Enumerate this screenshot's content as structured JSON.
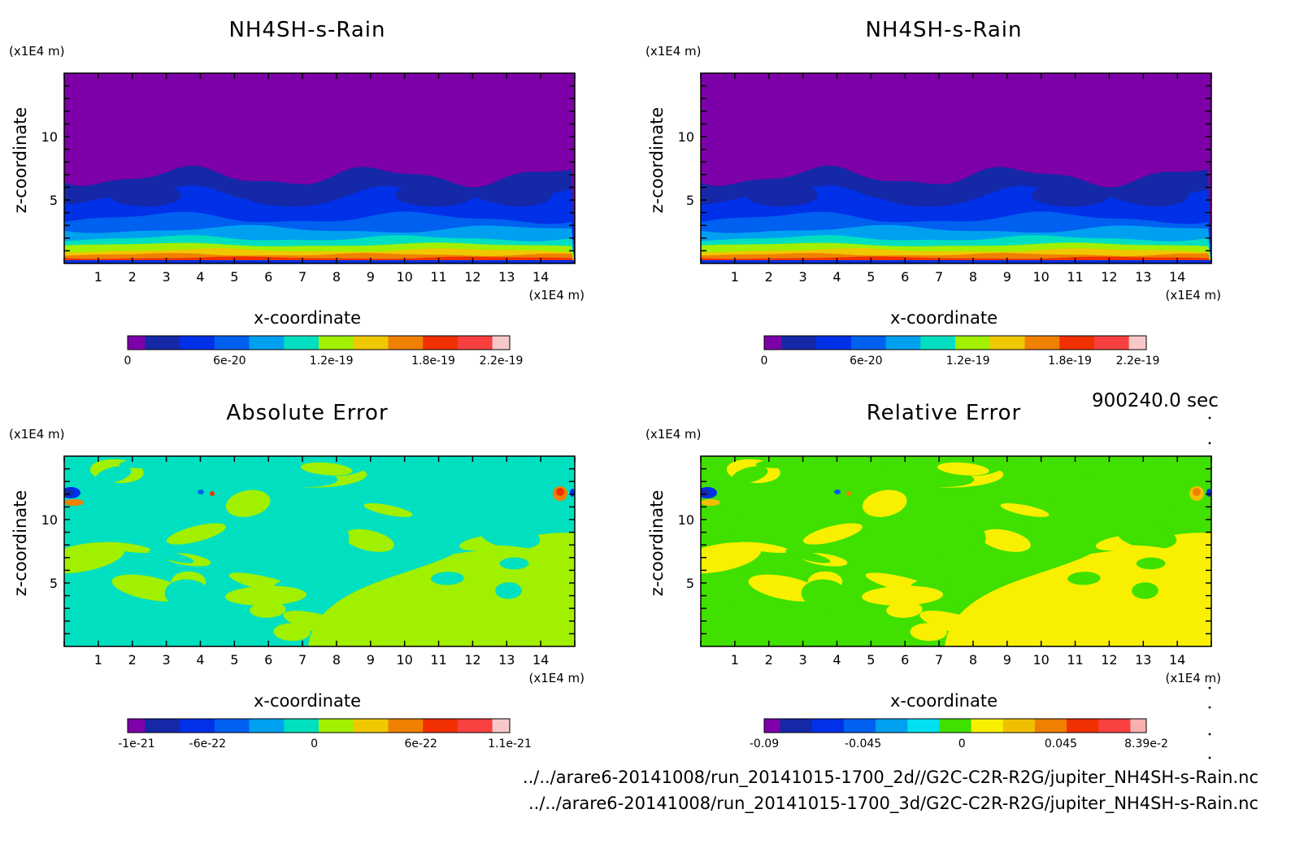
{
  "time_label": "900240.0 sec",
  "file_paths": [
    "../../arare6-20141008/run_20141015-1700_2d//G2C-C2R-R2G/jupiter_NH4SH-s-Rain.nc",
    "../../arare6-20141008/run_20141015-1700_3d/G2C-C2R-R2G/jupiter_NH4SH-s-Rain.nc"
  ],
  "chart_data": [
    {
      "type": "heatmap",
      "title": "NH4SH-s-Rain",
      "xlabel": "x-coordinate",
      "ylabel": "z-coordinate",
      "x_unit": "(x1E4 m)",
      "y_unit": "(x1E4 m)",
      "xlim": [
        0,
        15
      ],
      "ylim": [
        0,
        15
      ],
      "x_ticks": [
        1,
        2,
        3,
        4,
        5,
        6,
        7,
        8,
        9,
        10,
        11,
        12,
        13,
        14
      ],
      "y_ticks": [
        5,
        10
      ],
      "colorbar": {
        "range": [
          0,
          2.25e-19
        ],
        "tick_labels": [
          "0",
          "6e-20",
          "1.2e-19",
          "1.8e-19",
          "2.2e-19"
        ],
        "tick_values": [
          0,
          6e-20,
          1.2e-19,
          1.8e-19,
          2.2e-19
        ],
        "colors": [
          "#7e00a8",
          "#1428a8",
          "#0030e8",
          "#0060f0",
          "#00a0f0",
          "#00e0c0",
          "#a0f000",
          "#f0c800",
          "#f08000",
          "#f03000",
          "#f84040",
          "#f8c8c8"
        ]
      },
      "field": "layered"
    },
    {
      "type": "heatmap",
      "title": "NH4SH-s-Rain",
      "xlabel": "x-coordinate",
      "ylabel": "z-coordinate",
      "x_unit": "(x1E4 m)",
      "y_unit": "(x1E4 m)",
      "xlim": [
        0,
        15
      ],
      "ylim": [
        0,
        15
      ],
      "x_ticks": [
        1,
        2,
        3,
        4,
        5,
        6,
        7,
        8,
        9,
        10,
        11,
        12,
        13,
        14
      ],
      "y_ticks": [
        5,
        10
      ],
      "colorbar": {
        "range": [
          0,
          2.25e-19
        ],
        "tick_labels": [
          "0",
          "6e-20",
          "1.2e-19",
          "1.8e-19",
          "2.2e-19"
        ],
        "tick_values": [
          0,
          6e-20,
          1.2e-19,
          1.8e-19,
          2.2e-19
        ],
        "colors": [
          "#7e00a8",
          "#1428a8",
          "#0030e8",
          "#0060f0",
          "#00a0f0",
          "#00e0c0",
          "#a0f000",
          "#f0c800",
          "#f08000",
          "#f03000",
          "#f84040",
          "#f8c8c8"
        ]
      },
      "field": "layered"
    },
    {
      "type": "heatmap",
      "title": "Absolute Error",
      "xlabel": "x-coordinate",
      "ylabel": "z-coordinate",
      "x_unit": "(x1E4 m)",
      "y_unit": "(x1E4 m)",
      "xlim": [
        0,
        15
      ],
      "ylim": [
        0,
        15
      ],
      "x_ticks": [
        1,
        2,
        3,
        4,
        5,
        6,
        7,
        8,
        9,
        10,
        11,
        12,
        13,
        14
      ],
      "y_ticks": [
        5,
        10
      ],
      "colorbar": {
        "range": [
          -1.05e-21,
          1.1e-21
        ],
        "tick_labels": [
          "-1e-21",
          "-6e-22",
          "0",
          "6e-22",
          "1.1e-21"
        ],
        "tick_values": [
          -1e-21,
          -6e-22,
          0,
          6e-22,
          1.1e-21
        ],
        "colors": [
          "#7e00a8",
          "#1428a8",
          "#0030e8",
          "#0060f0",
          "#00a0f0",
          "#00e0c0",
          "#a0f000",
          "#f0c800",
          "#f08000",
          "#f03000",
          "#f84040",
          "#f8c8c8"
        ]
      },
      "field": "error",
      "fill_colors": [
        "#00e0c0",
        "#a0f000"
      ]
    },
    {
      "type": "heatmap",
      "title": "Relative Error",
      "xlabel": "x-coordinate",
      "ylabel": "z-coordinate",
      "x_unit": "(x1E4 m)",
      "y_unit": "(x1E4 m)",
      "xlim": [
        0,
        15
      ],
      "ylim": [
        0,
        15
      ],
      "x_ticks": [
        1,
        2,
        3,
        4,
        5,
        6,
        7,
        8,
        9,
        10,
        11,
        12,
        13,
        14
      ],
      "y_ticks": [
        5,
        10
      ],
      "colorbar": {
        "range": [
          -0.09,
          0.0839
        ],
        "tick_labels": [
          "-0.09",
          "-0.045",
          "0",
          "0.045",
          "8.39e-2"
        ],
        "tick_values": [
          -0.09,
          -0.045,
          0,
          0.045,
          0.0839
        ],
        "colors": [
          "#7e00a8",
          "#1428a8",
          "#0030e8",
          "#0060f0",
          "#00a0f0",
          "#00e0f0",
          "#40e000",
          "#f8f000",
          "#f0c000",
          "#f08000",
          "#f03000",
          "#f84040",
          "#f8b0b0"
        ]
      },
      "field": "error",
      "fill_colors": [
        "#40e000",
        "#f8f000"
      ]
    }
  ]
}
